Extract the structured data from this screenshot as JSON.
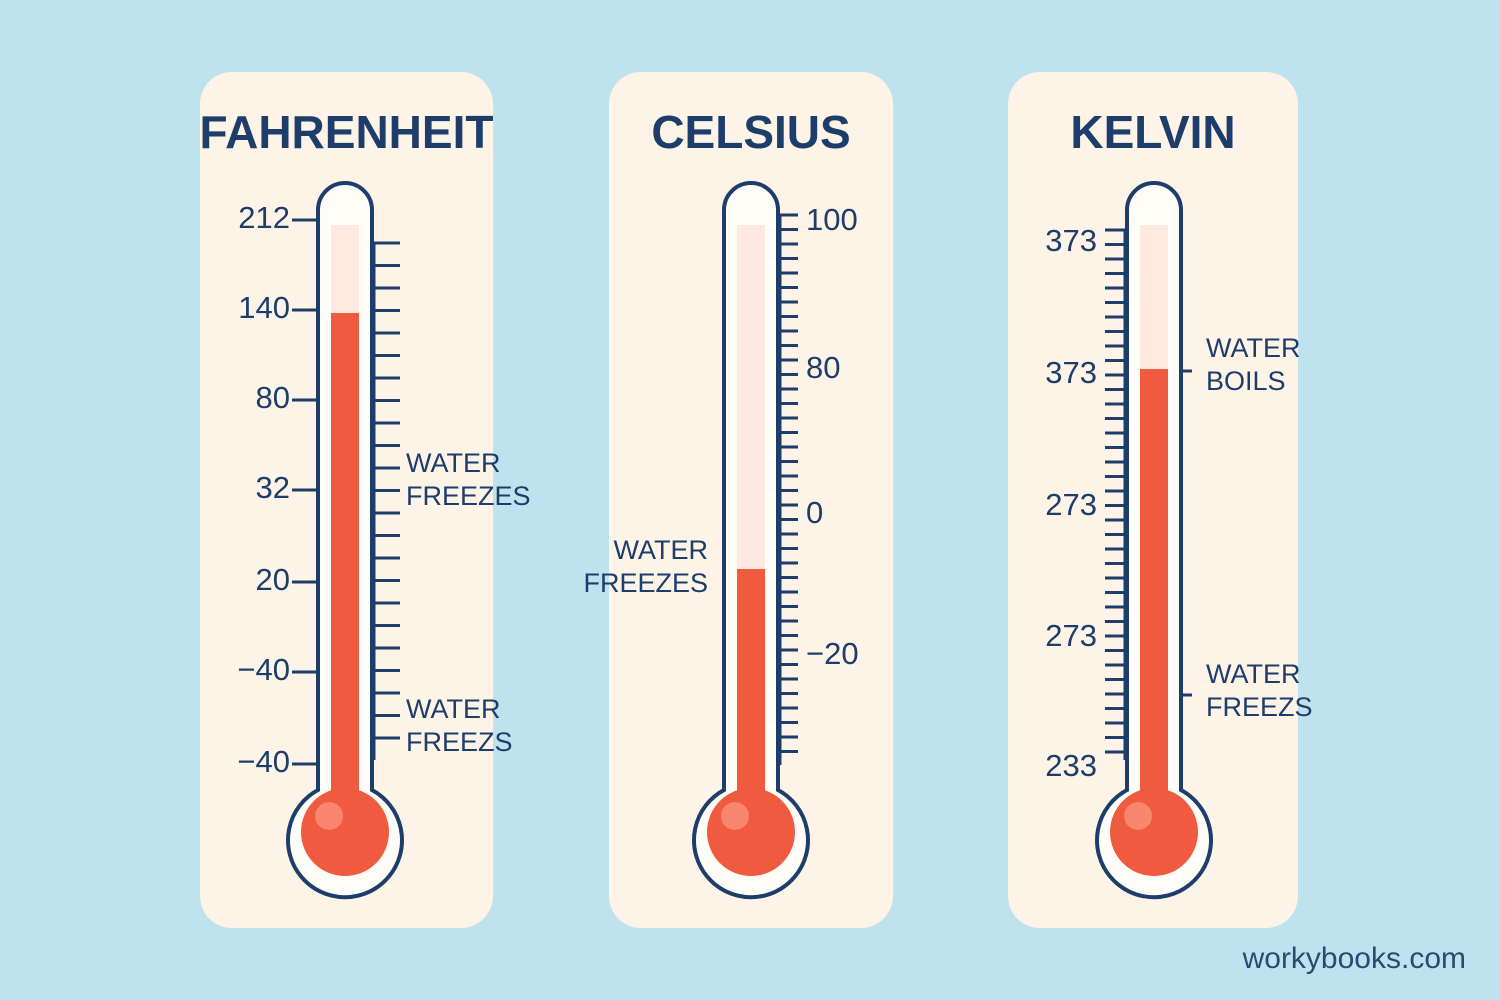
{
  "panels": [
    {
      "title": "FAHRENHEIT",
      "tick_labels": [
        "212",
        "140",
        "80",
        "32",
        "20",
        "−40",
        "−40"
      ],
      "annotations": [
        [
          "WATER",
          "FREEZES"
        ],
        [
          "WATER",
          "FREEZS"
        ]
      ]
    },
    {
      "title": "CELSIUS",
      "tick_labels": [
        "100",
        "80",
        "0",
        "−20"
      ],
      "annotations": [
        [
          "WATER",
          "FREEZES"
        ]
      ]
    },
    {
      "title": "KELVIN",
      "tick_labels": [
        "373",
        "373",
        "273",
        "273",
        "233"
      ],
      "annotations": [
        [
          "WATER",
          "BOILS"
        ],
        [
          "WATER",
          "FREEZS"
        ]
      ]
    }
  ],
  "footer": "workybooks.com"
}
